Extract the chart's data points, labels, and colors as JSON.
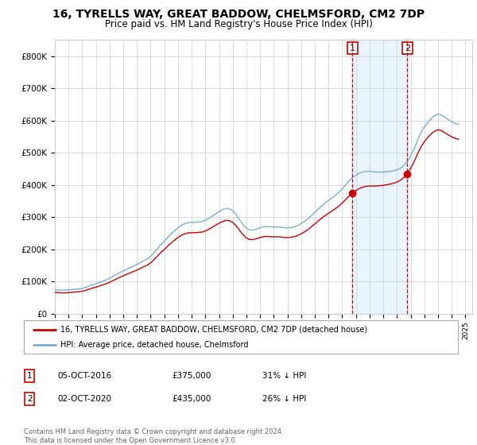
{
  "title": "16, TYRELLS WAY, GREAT BADDOW, CHELMSFORD, CM2 7DP",
  "subtitle": "Price paid vs. HM Land Registry's House Price Index (HPI)",
  "title_fontsize": 10,
  "subtitle_fontsize": 8.5,
  "xlim_start": 1995.0,
  "xlim_end": 2025.5,
  "ylim_min": 0,
  "ylim_max": 850000,
  "yticks": [
    0,
    100000,
    200000,
    300000,
    400000,
    500000,
    600000,
    700000,
    800000
  ],
  "ytick_labels": [
    "£0",
    "£100K",
    "£200K",
    "£300K",
    "£400K",
    "£500K",
    "£600K",
    "£700K",
    "£800K"
  ],
  "xticks": [
    1995,
    1996,
    1997,
    1998,
    1999,
    2000,
    2001,
    2002,
    2003,
    2004,
    2005,
    2006,
    2007,
    2008,
    2009,
    2010,
    2011,
    2012,
    2013,
    2014,
    2015,
    2016,
    2017,
    2018,
    2019,
    2020,
    2021,
    2022,
    2023,
    2024,
    2025
  ],
  "hpi_x": [
    1995.0,
    1995.25,
    1995.5,
    1995.75,
    1996.0,
    1996.25,
    1996.5,
    1996.75,
    1997.0,
    1997.25,
    1997.5,
    1997.75,
    1998.0,
    1998.25,
    1998.5,
    1998.75,
    1999.0,
    1999.25,
    1999.5,
    1999.75,
    2000.0,
    2000.25,
    2000.5,
    2000.75,
    2001.0,
    2001.25,
    2001.5,
    2001.75,
    2002.0,
    2002.25,
    2002.5,
    2002.75,
    2003.0,
    2003.25,
    2003.5,
    2003.75,
    2004.0,
    2004.25,
    2004.5,
    2004.75,
    2005.0,
    2005.25,
    2005.5,
    2005.75,
    2006.0,
    2006.25,
    2006.5,
    2006.75,
    2007.0,
    2007.25,
    2007.5,
    2007.75,
    2008.0,
    2008.25,
    2008.5,
    2008.75,
    2009.0,
    2009.25,
    2009.5,
    2009.75,
    2010.0,
    2010.25,
    2010.5,
    2010.75,
    2011.0,
    2011.25,
    2011.5,
    2011.75,
    2012.0,
    2012.25,
    2012.5,
    2012.75,
    2013.0,
    2013.25,
    2013.5,
    2013.75,
    2014.0,
    2014.25,
    2014.5,
    2014.75,
    2015.0,
    2015.25,
    2015.5,
    2015.75,
    2016.0,
    2016.25,
    2016.5,
    2016.75,
    2017.0,
    2017.25,
    2017.5,
    2017.75,
    2018.0,
    2018.25,
    2018.5,
    2018.75,
    2019.0,
    2019.25,
    2019.5,
    2019.75,
    2020.0,
    2020.25,
    2020.5,
    2020.75,
    2021.0,
    2021.25,
    2021.5,
    2021.75,
    2022.0,
    2022.25,
    2022.5,
    2022.75,
    2023.0,
    2023.25,
    2023.5,
    2023.75,
    2024.0,
    2024.25,
    2024.5
  ],
  "hpi_y": [
    75000,
    74000,
    73000,
    73500,
    74000,
    75000,
    76000,
    77000,
    79000,
    82000,
    86000,
    90000,
    93000,
    97000,
    101000,
    105000,
    110000,
    116000,
    122000,
    128000,
    133000,
    138000,
    143000,
    148000,
    153000,
    159000,
    165000,
    170000,
    178000,
    190000,
    202000,
    215000,
    225000,
    237000,
    248000,
    258000,
    267000,
    275000,
    280000,
    283000,
    284000,
    284000,
    285000,
    286000,
    290000,
    296000,
    303000,
    310000,
    317000,
    323000,
    327000,
    326000,
    320000,
    308000,
    292000,
    277000,
    265000,
    260000,
    260000,
    263000,
    267000,
    270000,
    271000,
    270000,
    269000,
    270000,
    269000,
    267000,
    266000,
    268000,
    270000,
    274000,
    280000,
    287000,
    295000,
    305000,
    315000,
    325000,
    335000,
    344000,
    352000,
    360000,
    368000,
    377000,
    388000,
    400000,
    412000,
    423000,
    430000,
    437000,
    440000,
    442000,
    442000,
    441000,
    440000,
    440000,
    440000,
    441000,
    442000,
    444000,
    447000,
    452000,
    460000,
    472000,
    490000,
    512000,
    538000,
    562000,
    580000,
    594000,
    606000,
    615000,
    620000,
    617000,
    610000,
    603000,
    596000,
    591000,
    588000
  ],
  "sale1_x": 2016.75,
  "sale1_y": 375000,
  "sale1_hpi": 423000,
  "sale1_label": "1",
  "sale2_x": 2020.75,
  "sale2_y": 435000,
  "sale2_hpi": 472000,
  "sale2_label": "2",
  "vline1_x": 2016.75,
  "vline2_x": 2020.75,
  "line_color_red": "#cc0000",
  "line_color_blue": "#7aadd4",
  "vline_color": "#cc0000",
  "marker_color": "#cc0000",
  "shade_color": "#ddeeff",
  "legend_label_red": "16, TYRELLS WAY, GREAT BADDOW, CHELMSFORD, CM2 7DP (detached house)",
  "legend_label_blue": "HPI: Average price, detached house, Chelmsford",
  "table_row1": [
    "1",
    "05-OCT-2016",
    "£375,000",
    "31% ↓ HPI"
  ],
  "table_row2": [
    "2",
    "02-OCT-2020",
    "£435,000",
    "26% ↓ HPI"
  ],
  "footer_text": "Contains HM Land Registry data © Crown copyright and database right 2024.\nThis data is licensed under the Open Government Licence v3.0.",
  "background_color": "#ffffff",
  "grid_color": "#cccccc"
}
